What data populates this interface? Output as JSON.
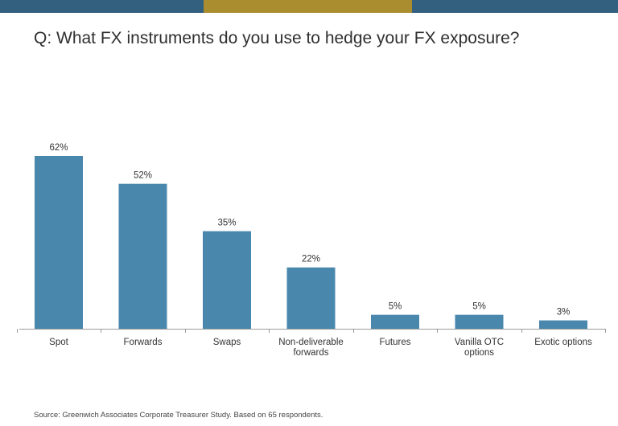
{
  "header": {
    "bar_colors": [
      "#33607f",
      "#a98d2e",
      "#33607f"
    ]
  },
  "title": "Q: What FX instruments do you use to hedge your FX exposure?",
  "source": "Source: Greenwich Associates Corporate Treasurer Study. Based on 65 respondents.",
  "chart_data": {
    "type": "bar",
    "categories": [
      [
        "Spot"
      ],
      [
        "Forwards"
      ],
      [
        "Swaps"
      ],
      [
        "Non-deliverable",
        "forwards"
      ],
      [
        "Futures"
      ],
      [
        "Vanilla OTC",
        "options"
      ],
      [
        "Exotic options"
      ]
    ],
    "values": [
      62,
      52,
      35,
      22,
      5,
      5,
      3
    ],
    "data_labels": [
      "62%",
      "52%",
      "35%",
      "22%",
      "5%",
      "5%",
      "3%"
    ],
    "unit": "%",
    "bar_color": "#4a87ad",
    "ylim": [
      0,
      62
    ],
    "grid": false,
    "legend": "none"
  }
}
